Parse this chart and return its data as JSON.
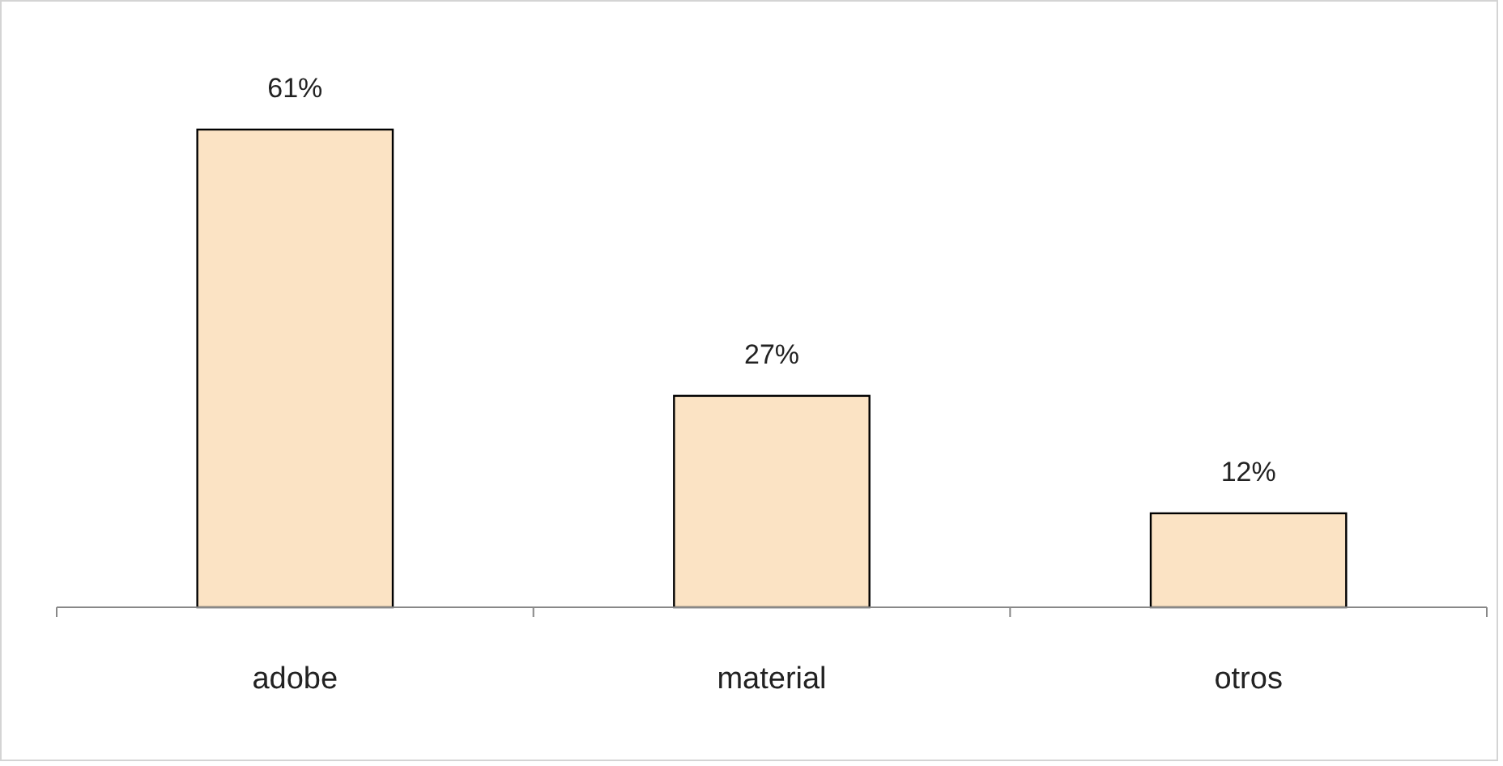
{
  "chart_data": {
    "type": "bar",
    "categories": [
      "adobe",
      "material",
      "otros"
    ],
    "values": [
      61,
      27,
      12
    ],
    "value_labels": [
      "61%",
      "27%",
      "12%"
    ],
    "color": "#fbe3c4"
  }
}
